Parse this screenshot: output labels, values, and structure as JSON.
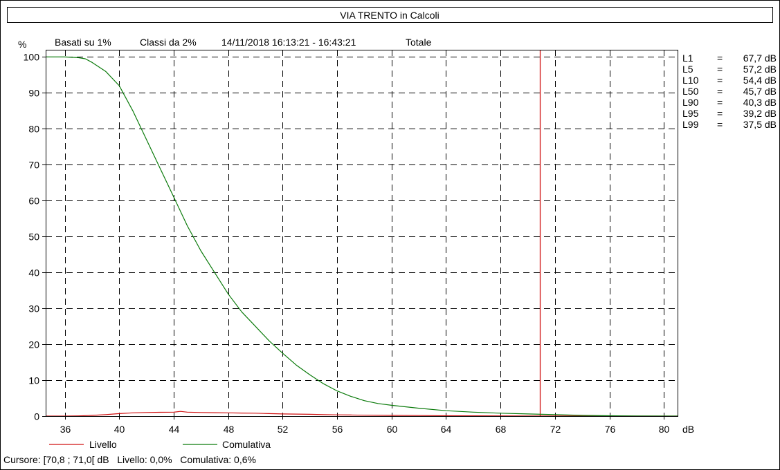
{
  "chart_data": {
    "type": "line",
    "title": "VIA TRENTO in Calcoli",
    "subtitle": {
      "ylabel": "%",
      "basis": "Basati su 1%",
      "classes": "Classi da 2%",
      "period": "14/11/2018 16:13:21 - 16:43:21",
      "scope": "Totale"
    },
    "xlabel": "dB",
    "xlim": [
      34.6,
      81
    ],
    "ylim": [
      0,
      102
    ],
    "x_ticks": [
      36,
      40,
      44,
      48,
      52,
      56,
      60,
      64,
      68,
      72,
      76,
      80
    ],
    "y_ticks": [
      0,
      10,
      20,
      30,
      40,
      50,
      60,
      70,
      80,
      90,
      100
    ],
    "grid": true,
    "series": [
      {
        "name": "Livello",
        "color": "#d01010",
        "x": [
          34.6,
          36,
          37,
          38,
          39,
          40,
          41,
          42,
          43,
          44,
          44.5,
          45,
          46,
          47,
          48,
          49,
          50,
          51,
          52,
          53,
          54,
          55,
          56,
          57,
          58,
          60,
          62,
          64,
          66,
          68,
          70,
          72,
          74,
          76,
          78,
          81
        ],
        "values": [
          0,
          0,
          0.05,
          0.2,
          0.4,
          0.7,
          0.9,
          1.0,
          1.05,
          1.1,
          1.3,
          1.1,
          1.0,
          0.95,
          0.9,
          0.85,
          0.8,
          0.7,
          0.6,
          0.55,
          0.5,
          0.4,
          0.35,
          0.3,
          0.25,
          0.2,
          0.15,
          0.1,
          0.08,
          0.06,
          0.04,
          0.03,
          0.02,
          0.01,
          0,
          0
        ]
      },
      {
        "name": "Comulativa",
        "color": "#0a7a0a",
        "x": [
          34.6,
          35,
          36,
          37,
          37.5,
          38,
          39,
          40,
          41,
          42,
          43,
          44,
          45,
          46,
          47,
          48,
          49,
          50,
          51,
          52,
          53,
          54,
          55,
          56,
          57,
          58,
          59,
          60,
          62,
          64,
          66,
          68,
          70,
          72,
          74,
          76,
          78,
          81
        ],
        "values": [
          100,
          100,
          100,
          99.8,
          99.5,
          98.5,
          96,
          92,
          85,
          77,
          69,
          61,
          53,
          46,
          40,
          34,
          29,
          25,
          21,
          17.5,
          14.2,
          11.5,
          9,
          7,
          5.5,
          4.3,
          3.5,
          3,
          2.2,
          1.5,
          1.1,
          0.8,
          0.6,
          0.4,
          0.2,
          0.1,
          0.03,
          0
        ]
      }
    ],
    "cursor": {
      "x": 70.9,
      "color": "#d01010"
    },
    "statistics": [
      {
        "label": "L1",
        "eq": "=",
        "value": "67,7 dB"
      },
      {
        "label": "L5",
        "eq": "=",
        "value": "57,2 dB"
      },
      {
        "label": "L10",
        "eq": "=",
        "value": "54,4 dB"
      },
      {
        "label": "L50",
        "eq": "=",
        "value": "45,7 dB"
      },
      {
        "label": "L90",
        "eq": "=",
        "value": "40,3 dB"
      },
      {
        "label": "L95",
        "eq": "=",
        "value": "39,2 dB"
      },
      {
        "label": "L99",
        "eq": "=",
        "value": "37,5 dB"
      }
    ],
    "legend": [
      {
        "name": "Livello",
        "color": "#d01010"
      },
      {
        "name": "Comulativa",
        "color": "#0a7a0a"
      }
    ],
    "status": "Cursore: [70,8 ; 71,0[ dB   Livello: 0,0%   Comulativa: 0,6%"
  }
}
